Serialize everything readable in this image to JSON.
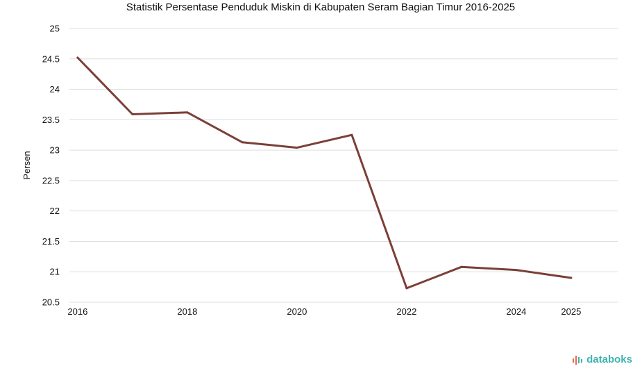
{
  "chart_data": {
    "type": "line",
    "title": "Statistik Persentase Penduduk Miskin di Kabupaten Seram Bagian Timur 2016-2025",
    "xlabel": "",
    "ylabel": "Persen",
    "ylim": [
      20.5,
      25
    ],
    "yticks": [
      "25",
      "24.5",
      "24",
      "23.5",
      "23",
      "22.5",
      "22",
      "21.5",
      "21",
      "20.5"
    ],
    "xticks": [
      "2016",
      "2018",
      "2020",
      "2022",
      "2024",
      "2025"
    ],
    "x": [
      2016,
      2017,
      2018,
      2019,
      2020,
      2021,
      2022,
      2023,
      2024,
      2025
    ],
    "series": [
      {
        "values": [
          24.52,
          23.59,
          23.62,
          23.13,
          23.04,
          23.25,
          20.73,
          21.08,
          21.03,
          20.9
        ],
        "color": "#7b3f38"
      }
    ],
    "grid": true,
    "legend": "none"
  },
  "branding": {
    "name": "databoks",
    "icon": "databoks-logo-icon",
    "color": "#3fb3b0"
  }
}
